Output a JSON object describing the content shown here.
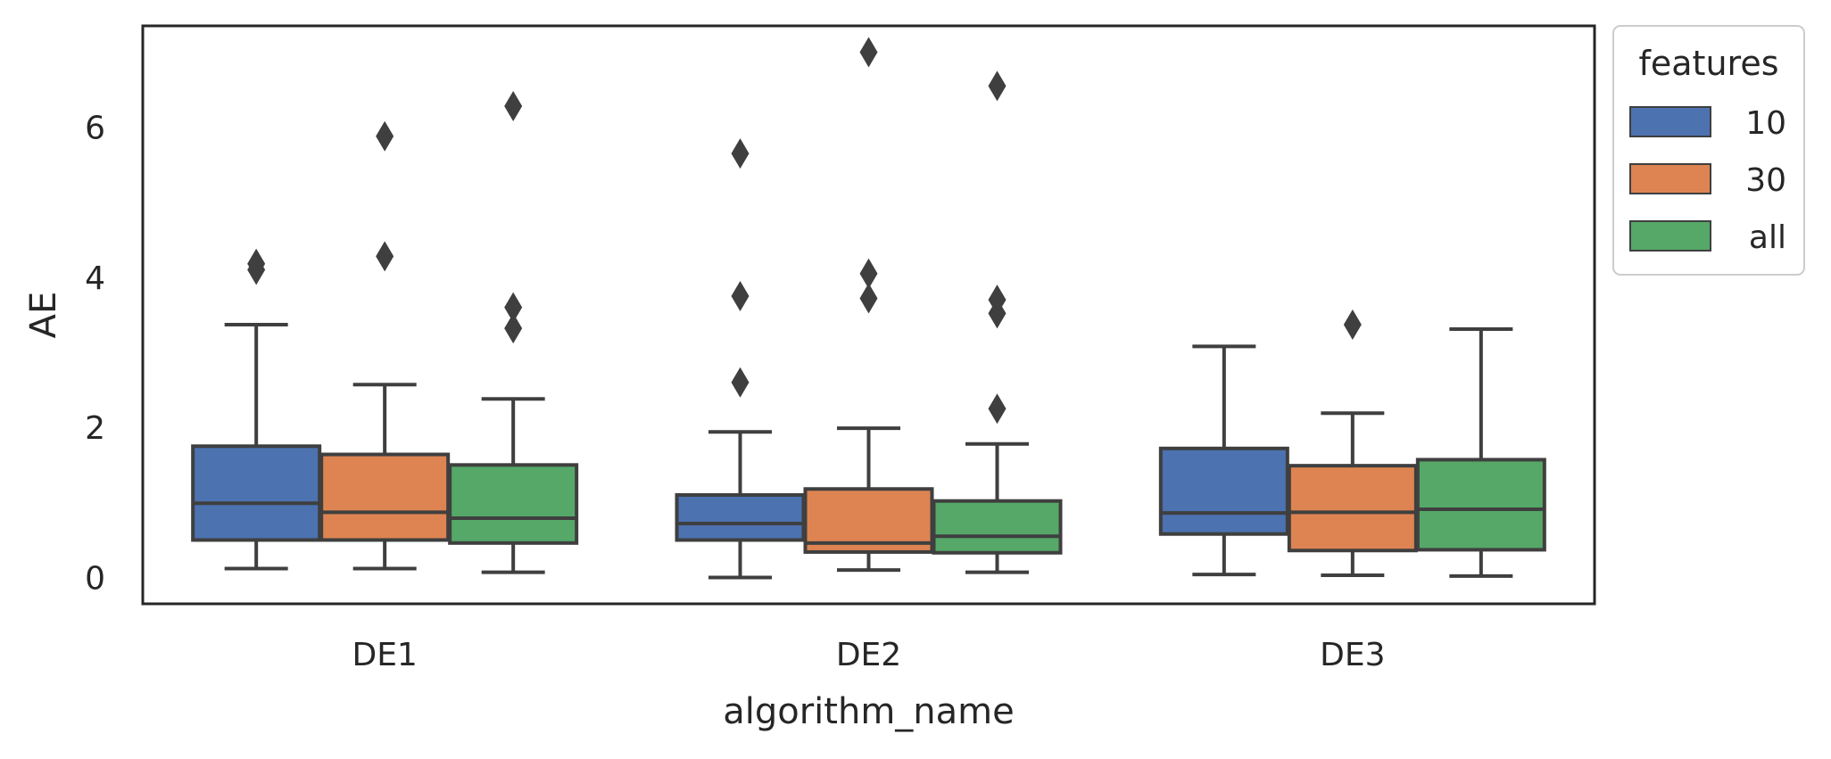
{
  "chart_data": {
    "type": "boxplot",
    "title": "",
    "xlabel": "algorithm_name",
    "ylabel": "AE",
    "ylim": [
      -0.35,
      7.35
    ],
    "yticks": [
      0,
      2,
      4,
      6
    ],
    "grid": false,
    "categories": [
      "DE1",
      "DE2",
      "DE3"
    ],
    "legend": {
      "title": "features",
      "position": "outside-top-right",
      "entries": [
        "10",
        "30",
        "all"
      ]
    },
    "colors": {
      "10": "#4c72b0",
      "30": "#dd8452",
      "all": "#55a868",
      "line": "#3f3f3f",
      "axes": "#262626"
    },
    "series": [
      {
        "name": "10",
        "boxes": [
          {
            "category": "DE1",
            "whisker_low": 0.12,
            "q1": 0.5,
            "median": 0.99,
            "q3": 1.75,
            "whisker_high": 3.37,
            "outliers": [
              4.1,
              4.18
            ]
          },
          {
            "category": "DE2",
            "whisker_low": 0.0,
            "q1": 0.5,
            "median": 0.72,
            "q3": 1.1,
            "whisker_high": 1.94,
            "outliers": [
              2.6,
              3.75,
              5.65
            ]
          },
          {
            "category": "DE3",
            "whisker_low": 0.04,
            "q1": 0.58,
            "median": 0.86,
            "q3": 1.72,
            "whisker_high": 3.08,
            "outliers": []
          }
        ]
      },
      {
        "name": "30",
        "boxes": [
          {
            "category": "DE1",
            "whisker_low": 0.12,
            "q1": 0.5,
            "median": 0.87,
            "q3": 1.64,
            "whisker_high": 2.57,
            "outliers": [
              4.28,
              5.88
            ]
          },
          {
            "category": "DE2",
            "whisker_low": 0.1,
            "q1": 0.34,
            "median": 0.46,
            "q3": 1.18,
            "whisker_high": 1.99,
            "outliers": [
              3.72,
              4.05,
              7.0
            ]
          },
          {
            "category": "DE3",
            "whisker_low": 0.03,
            "q1": 0.36,
            "median": 0.87,
            "q3": 1.49,
            "whisker_high": 2.19,
            "outliers": [
              3.37
            ]
          }
        ]
      },
      {
        "name": "all",
        "boxes": [
          {
            "category": "DE1",
            "whisker_low": 0.07,
            "q1": 0.46,
            "median": 0.79,
            "q3": 1.5,
            "whisker_high": 2.38,
            "outliers": [
              3.32,
              3.6,
              6.28
            ]
          },
          {
            "category": "DE2",
            "whisker_low": 0.07,
            "q1": 0.33,
            "median": 0.55,
            "q3": 1.02,
            "whisker_high": 1.78,
            "outliers": [
              2.25,
              3.52,
              3.7,
              6.55
            ]
          },
          {
            "category": "DE3",
            "whisker_low": 0.02,
            "q1": 0.37,
            "median": 0.91,
            "q3": 1.57,
            "whisker_high": 3.31,
            "outliers": []
          }
        ]
      }
    ]
  }
}
